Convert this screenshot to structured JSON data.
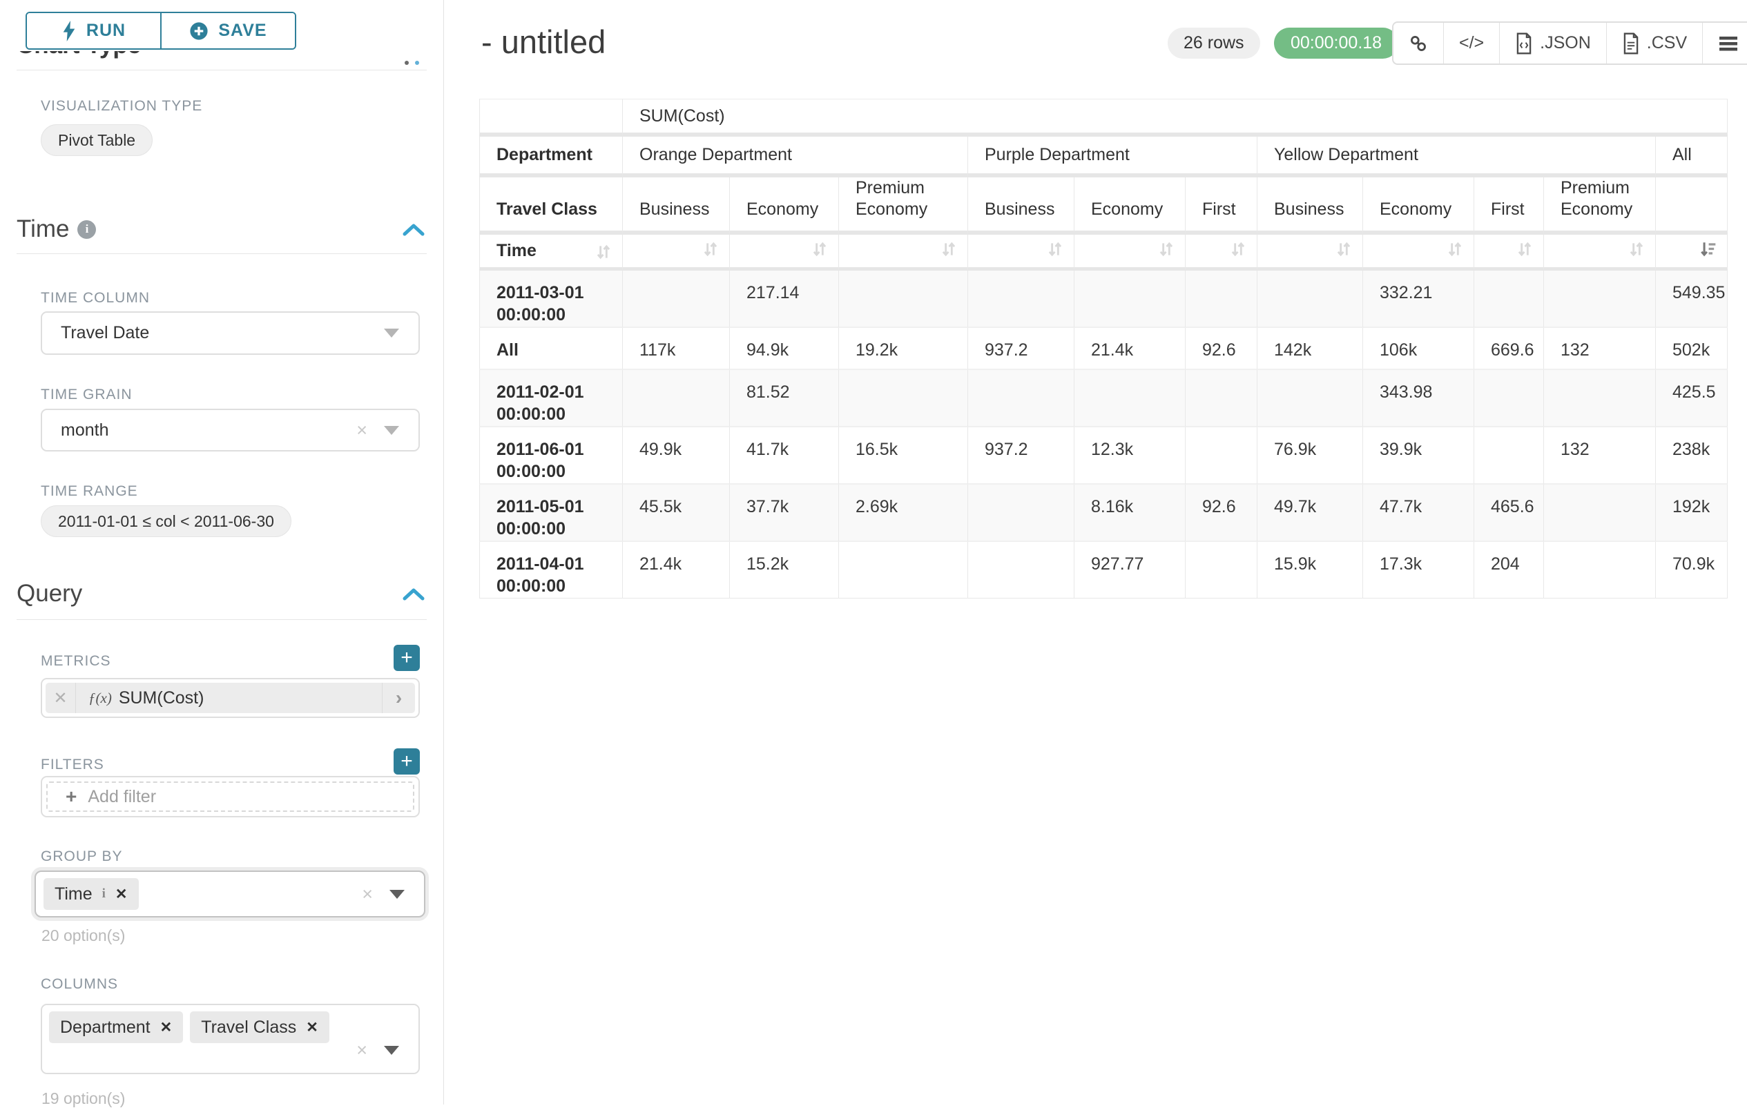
{
  "colors": {
    "teal_primary": "#2e7f99",
    "blue_chevron": "#38a3cf",
    "green_timer": "#74bd85",
    "label_gray": "#8b959e",
    "border_gray": "#dedede",
    "table_line": "#e8e8e8"
  },
  "sidebar": {
    "run_label": "RUN",
    "save_label": "SAVE",
    "chart_type_heading": "Chart Type",
    "viz_type_label": "VISUALIZATION TYPE",
    "viz_type_value": "Pivot Table",
    "time_section_title": "Time",
    "time_column_label": "TIME COLUMN",
    "time_column_value": "Travel Date",
    "time_grain_label": "TIME GRAIN",
    "time_grain_value": "month",
    "time_range_label": "TIME RANGE",
    "time_range_value": "2011-01-01 ≤ col < 2011-06-30",
    "query_section_title": "Query",
    "metrics_label": "METRICS",
    "metric_fx": "ƒ(x)",
    "metric_value": "SUM(Cost)",
    "metric_add_label": "+",
    "filters_label": "FILTERS",
    "filters_add_label": "+",
    "add_filter_plus": "+",
    "add_filter_placeholder": "Add filter",
    "group_by_label": "GROUP BY",
    "group_by_tags": [
      {
        "label": "Time",
        "info": "i",
        "close": "✕"
      }
    ],
    "group_by_options_note": "20 option(s)",
    "columns_label": "COLUMNS",
    "columns_tags": [
      {
        "label": "Department",
        "close": "✕"
      },
      {
        "label": "Travel Class",
        "close": "✕"
      }
    ],
    "columns_options_note": "19 option(s)"
  },
  "header": {
    "title": "- untitled",
    "row_count": "26 rows",
    "timer": "00:00:00.18",
    "code_icon_glyph": "</>",
    "export_json_label": ".JSON",
    "export_csv_label": ".CSV"
  },
  "pivot": {
    "metric_header": "SUM(Cost)",
    "department_label": "Department",
    "travel_class_label": "Travel Class",
    "time_label": "Time",
    "groups": [
      {
        "label": "Orange Department"
      },
      {
        "label": "Purple Department"
      },
      {
        "label": "Yellow Department"
      },
      {
        "label": "All"
      }
    ],
    "travel_classes": [
      "Business",
      "Economy",
      "Premium Economy",
      "Business",
      "Economy",
      "First",
      "Business",
      "Economy",
      "First",
      "Premium Economy"
    ],
    "rows": [
      {
        "label": "2011-03-01 00:00:00",
        "values": [
          "",
          "217.14",
          "",
          "",
          "",
          "",
          "",
          "332.21",
          "",
          "",
          "549.35"
        ]
      },
      {
        "label": "All",
        "values": [
          "117k",
          "94.9k",
          "19.2k",
          "937.2",
          "21.4k",
          "92.6",
          "142k",
          "106k",
          "669.6",
          "132",
          "502k"
        ]
      },
      {
        "label": "2011-02-01 00:00:00",
        "values": [
          "",
          "81.52",
          "",
          "",
          "",
          "",
          "",
          "343.98",
          "",
          "",
          "425.5"
        ]
      },
      {
        "label": "2011-06-01 00:00:00",
        "values": [
          "49.9k",
          "41.7k",
          "16.5k",
          "937.2",
          "12.3k",
          "",
          "76.9k",
          "39.9k",
          "",
          "132",
          "238k"
        ]
      },
      {
        "label": "2011-05-01 00:00:00",
        "values": [
          "45.5k",
          "37.7k",
          "2.69k",
          "",
          "8.16k",
          "92.6",
          "49.7k",
          "47.7k",
          "465.6",
          "",
          "192k"
        ]
      },
      {
        "label": "2011-04-01 00:00:00",
        "values": [
          "21.4k",
          "15.2k",
          "",
          "",
          "927.77",
          "",
          "15.9k",
          "17.3k",
          "204",
          "",
          "70.9k"
        ]
      }
    ]
  }
}
